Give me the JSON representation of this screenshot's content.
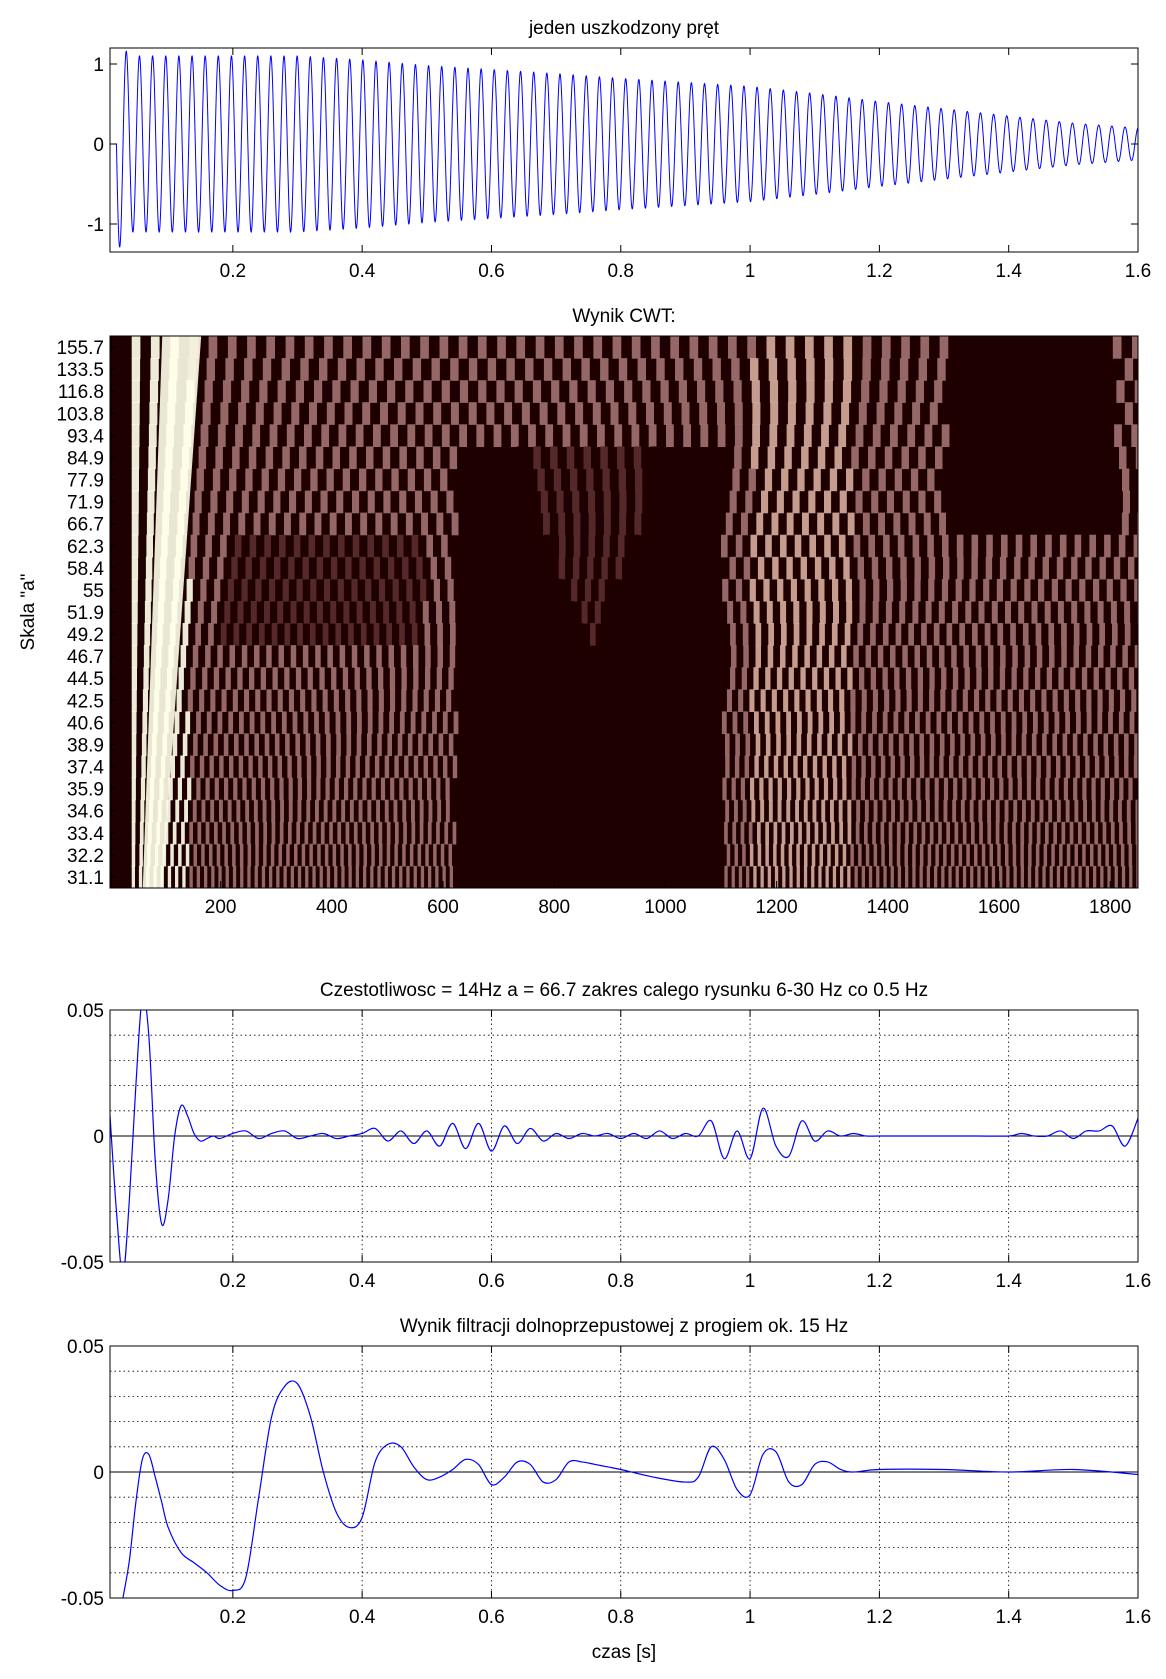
{
  "chart_data": [
    {
      "type": "line",
      "title": "jeden uszkodzony pręt",
      "xlabel": "",
      "ylabel": "",
      "xlim": [
        0.01,
        1.6
      ],
      "ylim": [
        -1.35,
        1.2
      ],
      "xticks": [
        0.2,
        0.4,
        0.6,
        0.8,
        1,
        1.2,
        1.4,
        1.6
      ],
      "xtick_labels": [
        "0.2",
        "0.4",
        "0.6",
        "0.8",
        "1",
        "1.2",
        "1.4",
        "1.6"
      ],
      "yticks": [
        1,
        0,
        -1
      ],
      "ytick_labels": [
        "1",
        "0",
        "-1"
      ],
      "grid": false,
      "series": [
        {
          "color": "#0000ff",
          "description": "sinusoid ~78 cycles, starts at t=0.02",
          "x": [
            0.02,
            0.04,
            0.1,
            0.2,
            0.3,
            0.4,
            0.5,
            0.6,
            0.7,
            0.8,
            0.9,
            1.0,
            1.1,
            1.2,
            1.3,
            1.4,
            1.5,
            1.6
          ],
          "envelope": [
            1.35,
            1.1,
            1.1,
            1.1,
            1.1,
            1.05,
            0.98,
            0.93,
            0.88,
            0.82,
            0.77,
            0.72,
            0.63,
            0.53,
            0.44,
            0.35,
            0.26,
            0.2
          ]
        }
      ]
    },
    {
      "type": "heatmap",
      "title": "Wynik CWT:",
      "xlabel": "",
      "ylabel": "Skala \"a\"",
      "xlim": [
        1,
        1850
      ],
      "xticks": [
        200,
        400,
        600,
        800,
        1000,
        1200,
        1400,
        1600,
        1800
      ],
      "xtick_labels": [
        "200",
        "400",
        "600",
        "800",
        "1000",
        "1200",
        "1400",
        "1600",
        "1800"
      ],
      "ytick_labels": [
        "155.7",
        "133.5",
        "116.8",
        "103.8",
        "93.4",
        "84.9",
        "77.9",
        "71.9",
        "66.7",
        "62.3",
        "58.4",
        "55",
        "51.9",
        "49.2",
        "46.7",
        "44.5",
        "42.5",
        "40.6",
        "38.9",
        "37.4",
        "35.9",
        "34.6",
        "33.4",
        "32.2",
        "31.1"
      ],
      "colormap": "pink",
      "colors": [
        "#1e0000",
        "#5a2d2d",
        "#a07070",
        "#d4a99a",
        "#ffffea"
      ]
    },
    {
      "type": "line",
      "title": "Czestotliwosc = 14Hz  a = 66.7 zakres calego rysunku 6-30 Hz co 0.5 Hz",
      "xlabel": "",
      "ylabel": "",
      "xlim": [
        0.01,
        1.6
      ],
      "ylim": [
        -0.05,
        0.05
      ],
      "xticks": [
        0.2,
        0.4,
        0.6,
        0.8,
        1,
        1.2,
        1.4,
        1.6
      ],
      "xtick_labels": [
        "0.2",
        "0.4",
        "0.6",
        "0.8",
        "1",
        "1.2",
        "1.4",
        "1.6"
      ],
      "yticks": [
        0.05,
        0,
        -0.05
      ],
      "ytick_labels": [
        "0.05",
        "0",
        "-0.05"
      ],
      "grid": true,
      "series": [
        {
          "color": "#0000ff",
          "x": [
            0.01,
            0.02,
            0.03,
            0.04,
            0.05,
            0.06,
            0.07,
            0.08,
            0.09,
            0.1,
            0.11,
            0.12,
            0.13,
            0.14,
            0.15,
            0.16,
            0.17,
            0.18,
            0.2,
            0.22,
            0.24,
            0.26,
            0.28,
            0.3,
            0.32,
            0.34,
            0.36,
            0.38,
            0.4,
            0.42,
            0.44,
            0.46,
            0.48,
            0.5,
            0.52,
            0.54,
            0.56,
            0.58,
            0.6,
            0.62,
            0.64,
            0.66,
            0.68,
            0.7,
            0.72,
            0.74,
            0.76,
            0.78,
            0.8,
            0.82,
            0.84,
            0.86,
            0.88,
            0.9,
            0.92,
            0.94,
            0.96,
            0.98,
            1.0,
            1.02,
            1.04,
            1.06,
            1.08,
            1.1,
            1.12,
            1.14,
            1.16,
            1.18,
            1.2,
            1.25,
            1.3,
            1.35,
            1.4,
            1.42,
            1.44,
            1.46,
            1.48,
            1.5,
            1.52,
            1.54,
            1.56,
            1.58,
            1.6
          ],
          "y": [
            0.008,
            -0.03,
            -0.055,
            -0.025,
            0.02,
            0.055,
            0.04,
            -0.01,
            -0.035,
            -0.025,
            0.0,
            0.012,
            0.008,
            0.001,
            -0.002,
            -0.001,
            0.0,
            -0.001,
            0.001,
            0.002,
            -0.001,
            0.001,
            0.002,
            -0.001,
            0.0,
            0.001,
            -0.001,
            0.0,
            0.001,
            0.003,
            -0.002,
            0.002,
            -0.003,
            0.002,
            -0.004,
            0.005,
            -0.005,
            0.005,
            -0.006,
            0.004,
            -0.003,
            0.003,
            -0.002,
            0.001,
            -0.001,
            0.001,
            0.0,
            0.001,
            -0.001,
            0.001,
            -0.001,
            0.002,
            -0.001,
            0.001,
            0.0,
            0.006,
            -0.009,
            0.002,
            -0.009,
            0.011,
            -0.004,
            -0.008,
            0.006,
            -0.002,
            0.002,
            0.0,
            0.001,
            0.0,
            0.0,
            0.0,
            0.0,
            0.0,
            0.0,
            0.001,
            0.0,
            0.0,
            0.002,
            -0.001,
            0.002,
            0.002,
            0.004,
            -0.004,
            0.007
          ]
        }
      ]
    },
    {
      "type": "line",
      "title": "Wynik filtracji dolnoprzepustowej z progiem ok. 15 Hz",
      "xlabel": "czas [s]",
      "ylabel": "",
      "xlim": [
        0.01,
        1.6
      ],
      "ylim": [
        -0.05,
        0.05
      ],
      "xticks": [
        0.2,
        0.4,
        0.6,
        0.8,
        1,
        1.2,
        1.4,
        1.6
      ],
      "xtick_labels": [
        "0.2",
        "0.4",
        "0.6",
        "0.8",
        "1",
        "1.2",
        "1.4",
        "1.6"
      ],
      "yticks": [
        0.05,
        0,
        -0.05
      ],
      "ytick_labels": [
        "0.05",
        "0",
        "-0.05"
      ],
      "grid": true,
      "series": [
        {
          "color": "#0000ff",
          "x": [
            0.03,
            0.04,
            0.05,
            0.06,
            0.07,
            0.08,
            0.09,
            0.1,
            0.12,
            0.14,
            0.16,
            0.18,
            0.2,
            0.22,
            0.24,
            0.26,
            0.28,
            0.3,
            0.32,
            0.34,
            0.36,
            0.38,
            0.4,
            0.42,
            0.44,
            0.46,
            0.48,
            0.5,
            0.52,
            0.54,
            0.56,
            0.58,
            0.6,
            0.62,
            0.64,
            0.66,
            0.68,
            0.7,
            0.72,
            0.74,
            0.76,
            0.78,
            0.8,
            0.85,
            0.9,
            0.92,
            0.94,
            0.96,
            0.98,
            1.0,
            1.02,
            1.04,
            1.06,
            1.08,
            1.1,
            1.12,
            1.14,
            1.16,
            1.2,
            1.3,
            1.4,
            1.5,
            1.6
          ],
          "y": [
            -0.05,
            -0.035,
            -0.012,
            0.005,
            0.007,
            -0.002,
            -0.012,
            -0.022,
            -0.032,
            -0.036,
            -0.04,
            -0.045,
            -0.047,
            -0.042,
            -0.01,
            0.022,
            0.034,
            0.035,
            0.022,
            0.0,
            -0.016,
            -0.022,
            -0.018,
            0.004,
            0.011,
            0.01,
            0.002,
            -0.003,
            -0.002,
            0.001,
            0.005,
            0.003,
            -0.005,
            -0.002,
            0.004,
            0.003,
            -0.004,
            -0.003,
            0.004,
            0.004,
            0.003,
            0.002,
            0.001,
            -0.002,
            -0.004,
            -0.002,
            0.01,
            0.005,
            -0.007,
            -0.009,
            0.007,
            0.008,
            -0.004,
            -0.005,
            0.003,
            0.004,
            0.001,
            0.0,
            0.001,
            0.001,
            0.0,
            0.001,
            -0.001
          ]
        }
      ]
    }
  ]
}
